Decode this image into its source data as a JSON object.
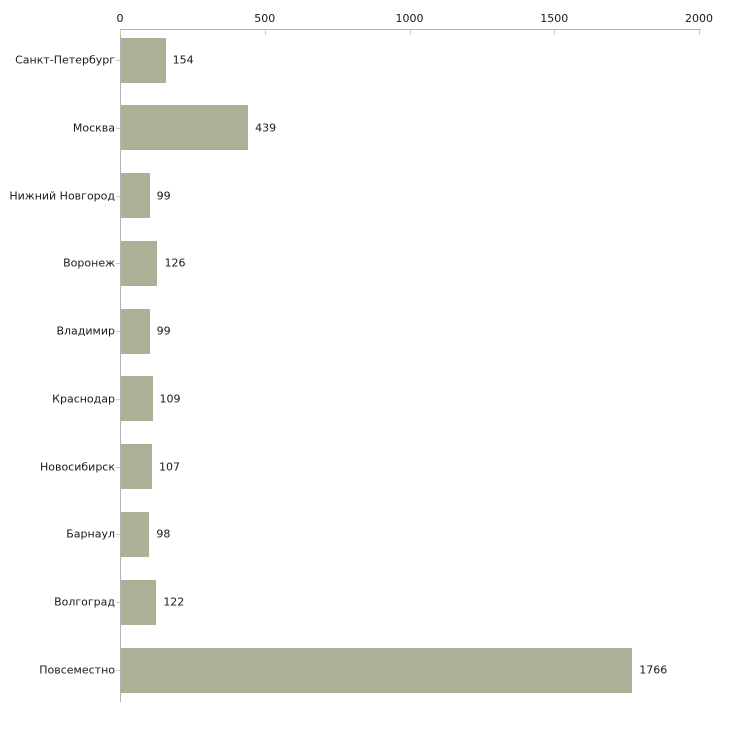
{
  "chart_data": {
    "type": "bar",
    "orientation": "horizontal",
    "title": "",
    "xlabel": "",
    "ylabel": "",
    "categories": [
      "Санкт-Петербург",
      "Москва",
      "Нижний Новгород",
      "Воронеж",
      "Владимир",
      "Краснодар",
      "Новосибирск",
      "Барнаул",
      "Волгоград",
      "Повсеместно"
    ],
    "values": [
      154,
      439,
      99,
      126,
      99,
      109,
      107,
      98,
      122,
      1766
    ],
    "xlim": [
      0,
      2000
    ],
    "x_ticks": [
      0,
      500,
      1000,
      1500,
      2000
    ],
    "grid": false,
    "legend": null,
    "colors": {
      "bar": "#abb197",
      "axis": "#b3b3b3",
      "tick": "#cdd0a5",
      "text": "#1a1a1a",
      "background": "#ffffff"
    }
  }
}
